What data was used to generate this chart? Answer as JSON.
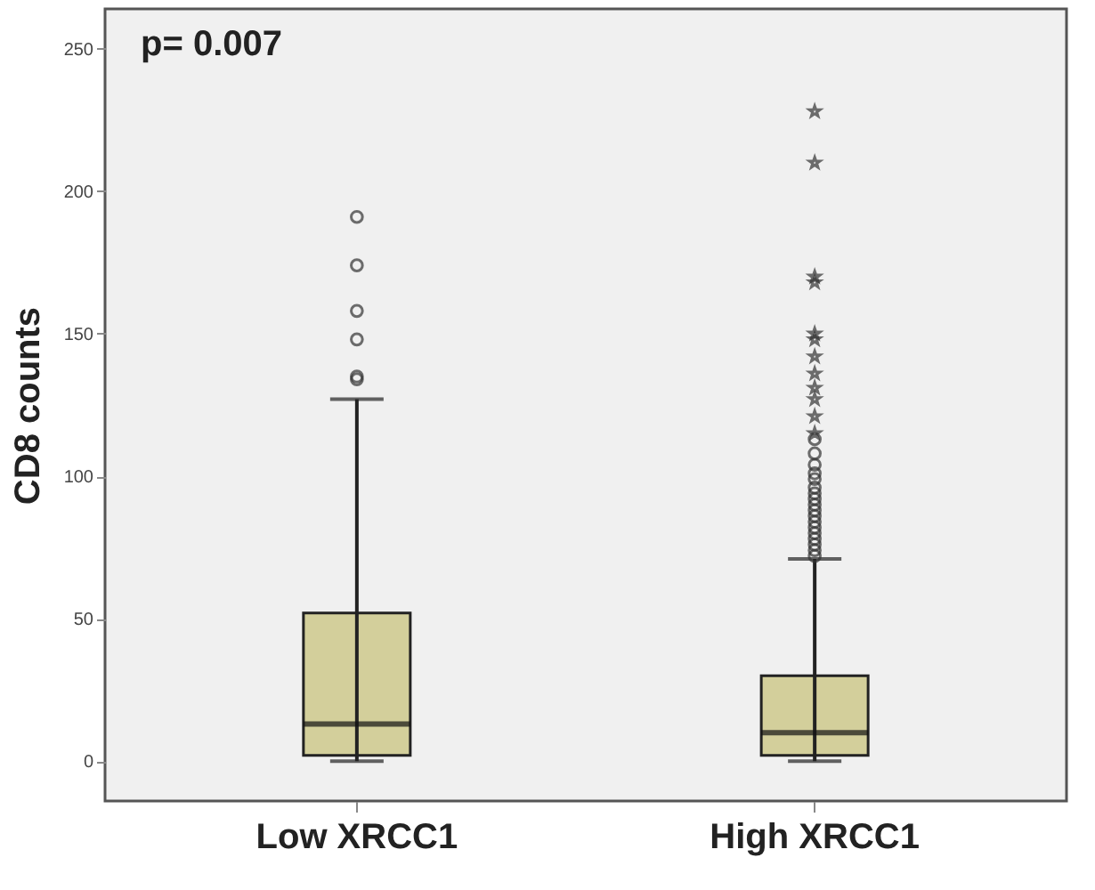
{
  "chart_data": {
    "type": "box",
    "ylabel": "CD8 counts",
    "categories": [
      "Low XRCC1",
      "High XRCC1"
    ],
    "boxes": [
      {
        "low": 0,
        "q1": 2,
        "median": 13,
        "q3": 52,
        "high": 127,
        "outliers": [
          191,
          174,
          158,
          148,
          135,
          134
        ]
      },
      {
        "low": 0,
        "q1": 2,
        "median": 10,
        "q3": 30,
        "high": 71,
        "outliers": [
          228,
          210,
          170,
          168,
          150,
          148,
          142,
          136,
          131,
          127,
          121,
          115,
          113,
          108,
          104,
          101,
          99,
          96,
          94,
          92,
          90,
          88,
          86,
          84,
          82,
          80,
          78,
          76,
          74,
          72
        ]
      }
    ],
    "color": "#d3cf9b",
    "ylim": [
      -14,
      264
    ],
    "yticks": [
      0,
      50,
      100,
      150,
      200,
      250
    ],
    "grid": false,
    "annotations": [
      "p= 0.007"
    ]
  }
}
